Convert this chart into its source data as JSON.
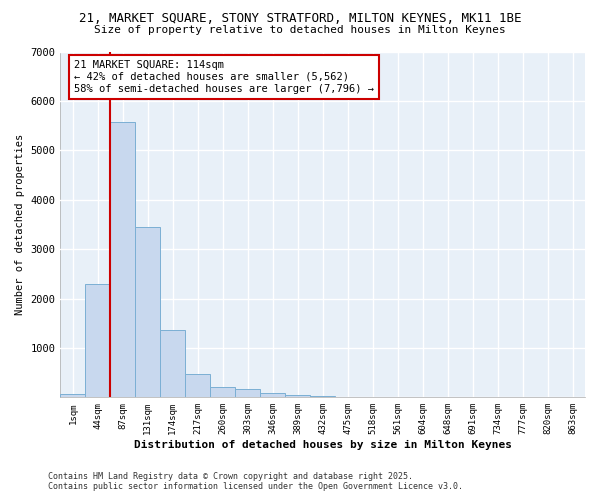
{
  "title_line1": "21, MARKET SQUARE, STONY STRATFORD, MILTON KEYNES, MK11 1BE",
  "title_line2": "Size of property relative to detached houses in Milton Keynes",
  "xlabel": "Distribution of detached houses by size in Milton Keynes",
  "ylabel": "Number of detached properties",
  "categories": [
    "1sqm",
    "44sqm",
    "87sqm",
    "131sqm",
    "174sqm",
    "217sqm",
    "260sqm",
    "303sqm",
    "346sqm",
    "389sqm",
    "432sqm",
    "475sqm",
    "518sqm",
    "561sqm",
    "604sqm",
    "648sqm",
    "691sqm",
    "734sqm",
    "777sqm",
    "820sqm",
    "863sqm"
  ],
  "values": [
    60,
    2300,
    5580,
    3450,
    1360,
    480,
    200,
    175,
    95,
    55,
    30,
    0,
    0,
    0,
    0,
    0,
    0,
    0,
    0,
    0,
    0
  ],
  "bar_color": "#c8d8ee",
  "bar_edge_color": "#7bafd4",
  "background_color": "#ffffff",
  "plot_bg_color": "#e8f0f8",
  "grid_color": "#ffffff",
  "ylim": [
    0,
    7000
  ],
  "yticks": [
    0,
    1000,
    2000,
    3000,
    4000,
    5000,
    6000,
    7000
  ],
  "property_label": "21 MARKET SQUARE: 114sqm",
  "pct_smaller": 42,
  "n_smaller": 5562,
  "pct_larger": 58,
  "n_larger": 7796,
  "vline_x": 1.5,
  "annotation_box_color": "#ffffff",
  "annotation_box_edge_color": "#cc0000",
  "footer_line1": "Contains HM Land Registry data © Crown copyright and database right 2025.",
  "footer_line2": "Contains public sector information licensed under the Open Government Licence v3.0."
}
